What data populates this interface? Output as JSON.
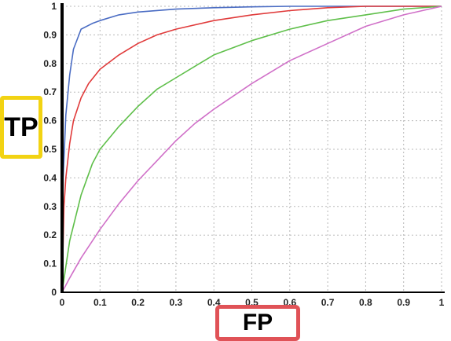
{
  "chart_data": {
    "type": "line",
    "title": "",
    "xlabel": "FP",
    "ylabel": "TP",
    "xlim": [
      0,
      1
    ],
    "ylim": [
      0,
      1
    ],
    "grid": true,
    "xticks": [
      "0",
      "0.1",
      "0.2",
      "0.3",
      "0.4",
      "0.5",
      "0.6",
      "0.7",
      "0.8",
      "0.9",
      "1"
    ],
    "yticks": [
      "0",
      "0.1",
      "0.2",
      "0.3",
      "0.4",
      "0.5",
      "0.6",
      "0.7",
      "0.8",
      "0.9",
      "1"
    ],
    "series": [
      {
        "color": "#4a6cc3",
        "x": [
          0,
          0.003,
          0.01,
          0.02,
          0.03,
          0.05,
          0.08,
          0.1,
          0.15,
          0.2,
          0.3,
          0.4,
          0.5,
          0.6,
          0.7,
          0.8,
          1.0
        ],
        "y": [
          0,
          0.4,
          0.62,
          0.76,
          0.85,
          0.92,
          0.94,
          0.95,
          0.97,
          0.98,
          0.99,
          0.995,
          0.998,
          1.0,
          1.0,
          1.0,
          1.0
        ]
      },
      {
        "color": "#e03a3a",
        "x": [
          0,
          0.005,
          0.01,
          0.02,
          0.03,
          0.05,
          0.07,
          0.1,
          0.15,
          0.2,
          0.25,
          0.3,
          0.4,
          0.5,
          0.6,
          0.7,
          0.8,
          1.0
        ],
        "y": [
          0,
          0.3,
          0.4,
          0.52,
          0.6,
          0.68,
          0.73,
          0.78,
          0.83,
          0.87,
          0.9,
          0.92,
          0.95,
          0.97,
          0.985,
          0.995,
          1.0,
          1.0
        ]
      },
      {
        "color": "#5fbf4a",
        "x": [
          0,
          0.01,
          0.02,
          0.05,
          0.08,
          0.1,
          0.15,
          0.2,
          0.25,
          0.3,
          0.35,
          0.4,
          0.5,
          0.6,
          0.7,
          0.8,
          0.9,
          1.0
        ],
        "y": [
          0,
          0.09,
          0.18,
          0.34,
          0.45,
          0.5,
          0.58,
          0.65,
          0.71,
          0.75,
          0.79,
          0.83,
          0.88,
          0.92,
          0.95,
          0.97,
          0.99,
          1.0
        ]
      },
      {
        "color": "#d070c8",
        "x": [
          0,
          0.02,
          0.05,
          0.1,
          0.15,
          0.2,
          0.25,
          0.3,
          0.35,
          0.4,
          0.5,
          0.6,
          0.7,
          0.8,
          0.9,
          1.0
        ],
        "y": [
          0,
          0.05,
          0.12,
          0.22,
          0.31,
          0.39,
          0.46,
          0.53,
          0.59,
          0.64,
          0.73,
          0.81,
          0.87,
          0.93,
          0.97,
          1.0
        ]
      }
    ]
  }
}
